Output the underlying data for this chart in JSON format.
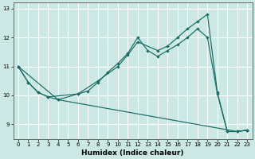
{
  "xlabel": "Humidex (Indice chaleur)",
  "background_color": "#cce8e5",
  "grid_color_white": "#ffffff",
  "grid_color_pink": "#e8c8c8",
  "line_color": "#1a6b64",
  "xlim": [
    -0.5,
    23.5
  ],
  "ylim": [
    8.5,
    13.2
  ],
  "yticks": [
    9,
    10,
    11,
    12,
    13
  ],
  "xticks": [
    0,
    1,
    2,
    3,
    4,
    5,
    6,
    7,
    8,
    9,
    10,
    11,
    12,
    13,
    14,
    15,
    16,
    17,
    18,
    19,
    20,
    21,
    22,
    23
  ],
  "series1": [
    [
      0,
      11.0
    ],
    [
      1,
      10.45
    ],
    [
      2,
      10.1
    ],
    [
      3,
      9.95
    ],
    [
      4,
      9.85
    ],
    [
      6,
      10.05
    ],
    [
      7,
      10.15
    ],
    [
      8,
      10.45
    ],
    [
      9,
      10.8
    ],
    [
      10,
      11.1
    ],
    [
      11,
      11.45
    ],
    [
      12,
      12.0
    ],
    [
      13,
      11.55
    ],
    [
      14,
      11.35
    ],
    [
      15,
      11.55
    ],
    [
      16,
      11.75
    ],
    [
      17,
      12.0
    ],
    [
      18,
      12.3
    ],
    [
      19,
      12.0
    ],
    [
      20,
      10.05
    ],
    [
      21,
      8.75
    ],
    [
      22,
      8.75
    ],
    [
      23,
      8.8
    ]
  ],
  "series2": [
    [
      0,
      11.0
    ],
    [
      1,
      10.45
    ],
    [
      2,
      10.1
    ],
    [
      3,
      9.95
    ],
    [
      6,
      10.05
    ],
    [
      8,
      10.5
    ],
    [
      10,
      11.0
    ],
    [
      11,
      11.4
    ],
    [
      12,
      11.85
    ],
    [
      14,
      11.55
    ],
    [
      15,
      11.7
    ],
    [
      16,
      12.0
    ],
    [
      17,
      12.3
    ],
    [
      18,
      12.55
    ],
    [
      19,
      12.8
    ],
    [
      20,
      10.1
    ],
    [
      21,
      8.75
    ],
    [
      22,
      8.75
    ],
    [
      23,
      8.8
    ]
  ],
  "series3": [
    [
      0,
      11.0
    ],
    [
      4,
      9.85
    ],
    [
      22,
      8.75
    ],
    [
      23,
      8.8
    ]
  ]
}
